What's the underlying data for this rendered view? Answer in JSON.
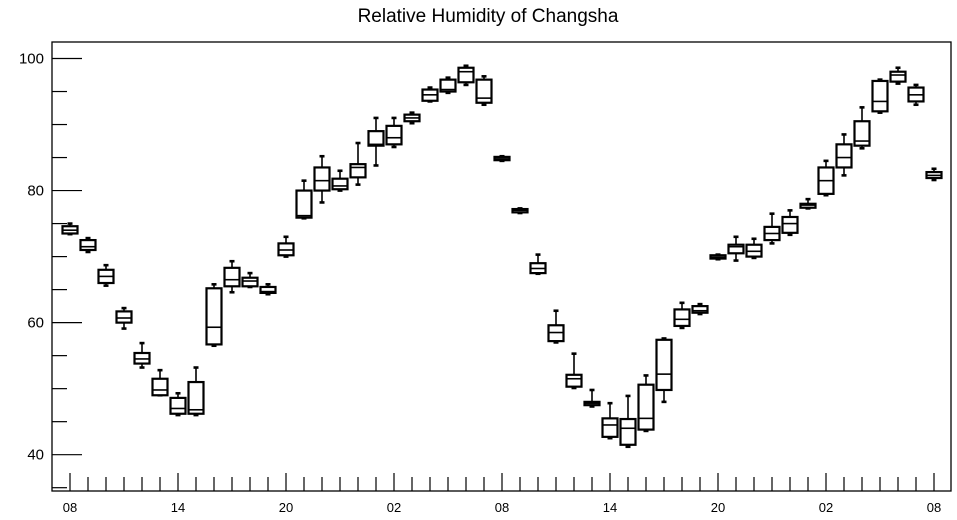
{
  "chart_data": {
    "type": "box",
    "title": "Relative Humidity of Changsha",
    "xlabel": "",
    "ylabel": "",
    "ylim": [
      34.5,
      102.5
    ],
    "yticks": [
      40,
      60,
      80,
      100
    ],
    "xtick_labels": [
      "08",
      "14",
      "20",
      "02",
      "08",
      "14",
      "20",
      "02",
      "08"
    ],
    "xtick_label_positions": [
      0,
      6,
      12,
      18,
      24,
      30,
      36,
      42,
      48
    ],
    "x_count": 49,
    "grid": false,
    "boxes": [
      {
        "x": 0,
        "min": 73.4,
        "q1": 73.5,
        "median": 74.0,
        "q3": 74.6,
        "max": 75.0
      },
      {
        "x": 1,
        "min": 70.7,
        "q1": 71.0,
        "median": 71.5,
        "q3": 72.5,
        "max": 72.8
      },
      {
        "x": 2,
        "min": 65.6,
        "q1": 66.0,
        "median": 67.0,
        "q3": 68.0,
        "max": 68.7
      },
      {
        "x": 3,
        "min": 59.1,
        "q1": 60.0,
        "median": 60.7,
        "q3": 61.7,
        "max": 62.2
      },
      {
        "x": 4,
        "min": 53.2,
        "q1": 53.8,
        "median": 54.5,
        "q3": 55.4,
        "max": 56.9
      },
      {
        "x": 5,
        "min": 49.0,
        "q1": 49.0,
        "median": 49.8,
        "q3": 51.5,
        "max": 52.8
      },
      {
        "x": 6,
        "min": 46.0,
        "q1": 46.2,
        "median": 47.0,
        "q3": 48.6,
        "max": 49.3
      },
      {
        "x": 7,
        "min": 46.0,
        "q1": 46.2,
        "median": 46.8,
        "q3": 51.0,
        "max": 53.2
      },
      {
        "x": 8,
        "min": 56.5,
        "q1": 56.7,
        "median": 59.3,
        "q3": 65.2,
        "max": 65.8
      },
      {
        "x": 9,
        "min": 64.6,
        "q1": 65.5,
        "median": 66.5,
        "q3": 68.3,
        "max": 69.3
      },
      {
        "x": 10,
        "min": 65.4,
        "q1": 65.5,
        "median": 66.3,
        "q3": 66.8,
        "max": 67.5
      },
      {
        "x": 11,
        "min": 64.3,
        "q1": 64.5,
        "median": 64.7,
        "q3": 65.4,
        "max": 65.8
      },
      {
        "x": 12,
        "min": 70.0,
        "q1": 70.2,
        "median": 71.0,
        "q3": 72.0,
        "max": 73.0
      },
      {
        "x": 13,
        "min": 75.8,
        "q1": 75.9,
        "median": 76.2,
        "q3": 80.0,
        "max": 81.5
      },
      {
        "x": 14,
        "min": 78.2,
        "q1": 80.0,
        "median": 81.5,
        "q3": 83.5,
        "max": 85.2
      },
      {
        "x": 15,
        "min": 80.0,
        "q1": 80.2,
        "median": 80.7,
        "q3": 81.8,
        "max": 83.0
      },
      {
        "x": 16,
        "min": 80.9,
        "q1": 82.0,
        "median": 83.5,
        "q3": 84.0,
        "max": 87.2
      },
      {
        "x": 17,
        "min": 83.8,
        "q1": 86.8,
        "median": 87.0,
        "q3": 89.0,
        "max": 91.0
      },
      {
        "x": 18,
        "min": 86.6,
        "q1": 87.0,
        "median": 88.0,
        "q3": 89.8,
        "max": 91.0
      },
      {
        "x": 19,
        "min": 90.2,
        "q1": 90.5,
        "median": 91.0,
        "q3": 91.5,
        "max": 91.8
      },
      {
        "x": 20,
        "min": 93.5,
        "q1": 93.6,
        "median": 94.5,
        "q3": 95.3,
        "max": 95.6
      },
      {
        "x": 21,
        "min": 94.8,
        "q1": 95.0,
        "median": 95.3,
        "q3": 96.8,
        "max": 97.1
      },
      {
        "x": 22,
        "min": 96.0,
        "q1": 96.4,
        "median": 98.0,
        "q3": 98.6,
        "max": 98.9
      },
      {
        "x": 23,
        "min": 93.0,
        "q1": 93.3,
        "median": 94.0,
        "q3": 96.8,
        "max": 97.3
      },
      {
        "x": 24,
        "min": 84.5,
        "q1": 84.6,
        "median": 84.8,
        "q3": 85.1,
        "max": 85.2
      },
      {
        "x": 25,
        "min": 76.6,
        "q1": 76.7,
        "median": 77.0,
        "q3": 77.2,
        "max": 77.3
      },
      {
        "x": 26,
        "min": 67.4,
        "q1": 67.5,
        "median": 68.2,
        "q3": 69.0,
        "max": 70.3
      },
      {
        "x": 27,
        "min": 57.0,
        "q1": 57.2,
        "median": 58.5,
        "q3": 59.6,
        "max": 61.8
      },
      {
        "x": 28,
        "min": 50.1,
        "q1": 50.3,
        "median": 51.5,
        "q3": 52.1,
        "max": 55.3
      },
      {
        "x": 29,
        "min": 47.3,
        "q1": 47.5,
        "median": 47.8,
        "q3": 48.0,
        "max": 49.8
      },
      {
        "x": 30,
        "min": 42.5,
        "q1": 42.7,
        "median": 44.5,
        "q3": 45.5,
        "max": 47.8
      },
      {
        "x": 31,
        "min": 41.2,
        "q1": 41.5,
        "median": 44.0,
        "q3": 45.4,
        "max": 48.9
      },
      {
        "x": 32,
        "min": 43.6,
        "q1": 43.8,
        "median": 45.5,
        "q3": 50.6,
        "max": 52.0
      },
      {
        "x": 33,
        "min": 48.0,
        "q1": 49.8,
        "median": 52.2,
        "q3": 57.4,
        "max": 57.6
      },
      {
        "x": 34,
        "min": 59.2,
        "q1": 59.5,
        "median": 60.5,
        "q3": 62.0,
        "max": 63.0
      },
      {
        "x": 35,
        "min": 61.3,
        "q1": 61.5,
        "median": 61.8,
        "q3": 62.5,
        "max": 62.8
      },
      {
        "x": 36,
        "min": 69.6,
        "q1": 69.7,
        "median": 69.9,
        "q3": 70.2,
        "max": 70.3
      },
      {
        "x": 37,
        "min": 69.4,
        "q1": 70.5,
        "median": 71.5,
        "q3": 71.8,
        "max": 73.0
      },
      {
        "x": 38,
        "min": 69.8,
        "q1": 70.0,
        "median": 70.8,
        "q3": 71.8,
        "max": 72.7
      },
      {
        "x": 39,
        "min": 72.0,
        "q1": 72.5,
        "median": 73.5,
        "q3": 74.5,
        "max": 76.5
      },
      {
        "x": 40,
        "min": 73.3,
        "q1": 73.6,
        "median": 75.0,
        "q3": 76.0,
        "max": 77.0
      },
      {
        "x": 41,
        "min": 77.3,
        "q1": 77.4,
        "median": 77.8,
        "q3": 78.0,
        "max": 78.7
      },
      {
        "x": 42,
        "min": 79.3,
        "q1": 79.5,
        "median": 81.5,
        "q3": 83.5,
        "max": 84.5
      },
      {
        "x": 43,
        "min": 82.3,
        "q1": 83.5,
        "median": 85.0,
        "q3": 87.0,
        "max": 88.5
      },
      {
        "x": 44,
        "min": 86.4,
        "q1": 86.8,
        "median": 87.5,
        "q3": 90.5,
        "max": 92.6
      },
      {
        "x": 45,
        "min": 91.8,
        "q1": 92.0,
        "median": 93.5,
        "q3": 96.6,
        "max": 96.8
      },
      {
        "x": 46,
        "min": 96.2,
        "q1": 96.5,
        "median": 97.5,
        "q3": 98.0,
        "max": 98.6
      },
      {
        "x": 47,
        "min": 93.0,
        "q1": 93.5,
        "median": 94.5,
        "q3": 95.6,
        "max": 96.0
      },
      {
        "x": 48,
        "min": 81.6,
        "q1": 81.9,
        "median": 82.3,
        "q3": 82.8,
        "max": 83.3
      }
    ]
  }
}
